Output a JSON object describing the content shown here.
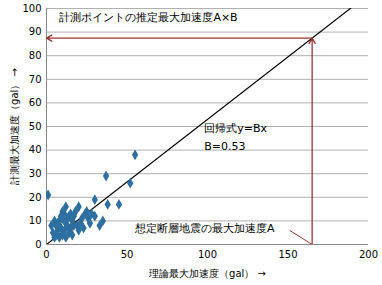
{
  "chart_data": {
    "type": "scatter",
    "x_label": "理論最大加速度（gal）",
    "y_label": "計測最大加速度（gal）",
    "x": [
      1,
      3,
      4,
      5,
      5,
      6,
      6,
      7,
      7,
      8,
      8,
      9,
      9,
      10,
      10,
      10,
      11,
      11,
      12,
      12,
      12,
      13,
      13,
      14,
      14,
      15,
      15,
      16,
      16,
      17,
      17,
      18,
      19,
      20,
      20,
      21,
      22,
      23,
      24,
      25,
      26,
      27,
      28,
      30,
      30,
      33,
      35,
      37,
      38,
      45,
      52,
      55
    ],
    "y": [
      21,
      8,
      5,
      10,
      3,
      4,
      8,
      6,
      9,
      3,
      10,
      7,
      12,
      4,
      11,
      14,
      13,
      6,
      3,
      9,
      16,
      11,
      8,
      5,
      12,
      13,
      7,
      4,
      10,
      8,
      12,
      14,
      8,
      16,
      6,
      9,
      11,
      7,
      13,
      14,
      11,
      9,
      13,
      19,
      12,
      8,
      10,
      29,
      17,
      17,
      26,
      38
    ],
    "color": "#2f6fa0",
    "marker": "diamond",
    "xlim": [
      0,
      200
    ],
    "xticks": [
      0,
      50,
      100,
      150,
      200
    ],
    "ylim": [
      0,
      100
    ],
    "yticks": [
      0,
      10,
      20,
      30,
      40,
      50,
      60,
      70,
      80,
      90,
      100
    ],
    "grid": true,
    "regression": {
      "label": "回帰式y=Bx",
      "slope": 0.53,
      "slope_label": "B=0.53",
      "color": "#000000"
    },
    "estimate": {
      "x": 165,
      "label": "想定断層地震の最大加速度A",
      "result_label": "計測ポイントの推定最大加速度A×B",
      "color": "#953735"
    }
  }
}
